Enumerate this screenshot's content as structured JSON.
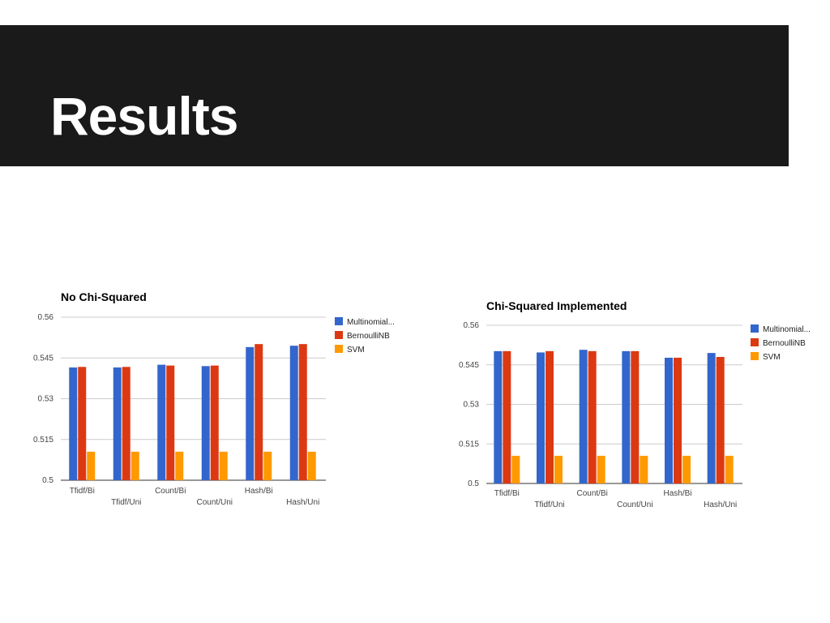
{
  "slide": {
    "title": "Results"
  },
  "colors": {
    "header_bg": "#1a1a1a",
    "series": [
      "#3366cc",
      "#dc3912",
      "#ff9900"
    ],
    "grid": "#cccccc"
  },
  "chart_data": [
    {
      "type": "bar",
      "title": "No Chi-Squared",
      "xlabel": "",
      "ylabel": "",
      "categories": [
        "Tfidf/Bi",
        "Tfidf/Uni",
        "Count/Bi",
        "Count/Uni",
        "Hash/Bi",
        "Hash/Uni"
      ],
      "series": [
        {
          "name": "Multinomial...",
          "values": [
            0.5415,
            0.5415,
            0.5425,
            0.542,
            0.549,
            0.5495
          ]
        },
        {
          "name": "BernoulliNB",
          "values": [
            0.5417,
            0.5417,
            0.5422,
            0.5422,
            0.5501,
            0.5501
          ]
        },
        {
          "name": "SVM",
          "values": [
            0.5105,
            0.5105,
            0.5105,
            0.5105,
            0.5105,
            0.5105
          ]
        }
      ],
      "yticks": [
        "0.5",
        "0.515",
        "0.53",
        "0.545",
        "0.56"
      ],
      "ylim": [
        0.5,
        0.56
      ],
      "grid": true,
      "legend_position": "right"
    },
    {
      "type": "bar",
      "title": "Chi-Squared Implemented",
      "xlabel": "",
      "ylabel": "",
      "categories": [
        "Tfidf/Bi",
        "Tfidf/Uni",
        "Count/Bi",
        "Count/Uni",
        "Hash/Bi",
        "Hash/Uni"
      ],
      "series": [
        {
          "name": "Multinomial...",
          "values": [
            0.5502,
            0.5497,
            0.5507,
            0.5502,
            0.5477,
            0.5495
          ]
        },
        {
          "name": "BernoulliNB",
          "values": [
            0.5502,
            0.5502,
            0.5502,
            0.5502,
            0.5477,
            0.548
          ]
        },
        {
          "name": "SVM",
          "values": [
            0.5105,
            0.5105,
            0.5105,
            0.5105,
            0.5105,
            0.5105
          ]
        }
      ],
      "yticks": [
        "0.5",
        "0.515",
        "0.53",
        "0.545",
        "0.56"
      ],
      "ylim": [
        0.5,
        0.56
      ],
      "grid": true,
      "legend_position": "right"
    }
  ]
}
